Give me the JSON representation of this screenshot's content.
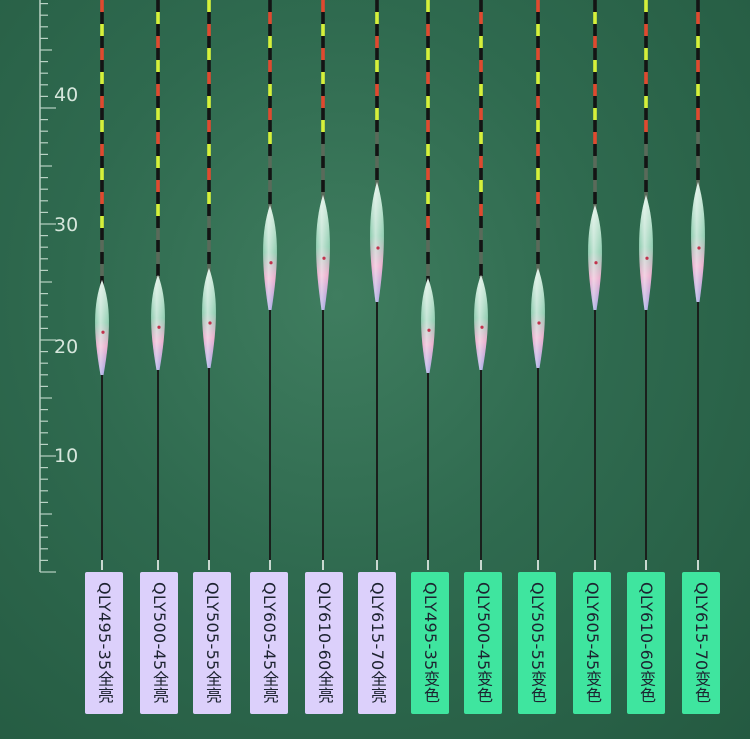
{
  "ruler": {
    "ticks": [
      "40",
      "30",
      "20",
      "10"
    ]
  },
  "floats": [
    {
      "label": "QLY495-35全亮",
      "tag_style": "purple"
    },
    {
      "label": "QLY500-45全亮",
      "tag_style": "purple"
    },
    {
      "label": "QLY505-55全亮",
      "tag_style": "purple"
    },
    {
      "label": "QLY605-45全亮",
      "tag_style": "purple"
    },
    {
      "label": "QLY610-60全亮",
      "tag_style": "purple"
    },
    {
      "label": "QLY615-70全亮",
      "tag_style": "purple"
    },
    {
      "label": "QLY495-35变色",
      "tag_style": "green"
    },
    {
      "label": "QLY500-45变色",
      "tag_style": "green"
    },
    {
      "label": "QLY505-55变色",
      "tag_style": "green"
    },
    {
      "label": "QLY605-45变色",
      "tag_style": "green"
    },
    {
      "label": "QLY610-60变色",
      "tag_style": "green"
    },
    {
      "label": "QLY615-70变色",
      "tag_style": "green"
    }
  ],
  "colors": {
    "background": "#2f6a4f",
    "tag_purple": "#dcd0fb",
    "tag_green": "#3fe59f",
    "tip_red": "#e0492f",
    "tip_yellow": "#d6f03a",
    "tip_black": "#141414"
  }
}
